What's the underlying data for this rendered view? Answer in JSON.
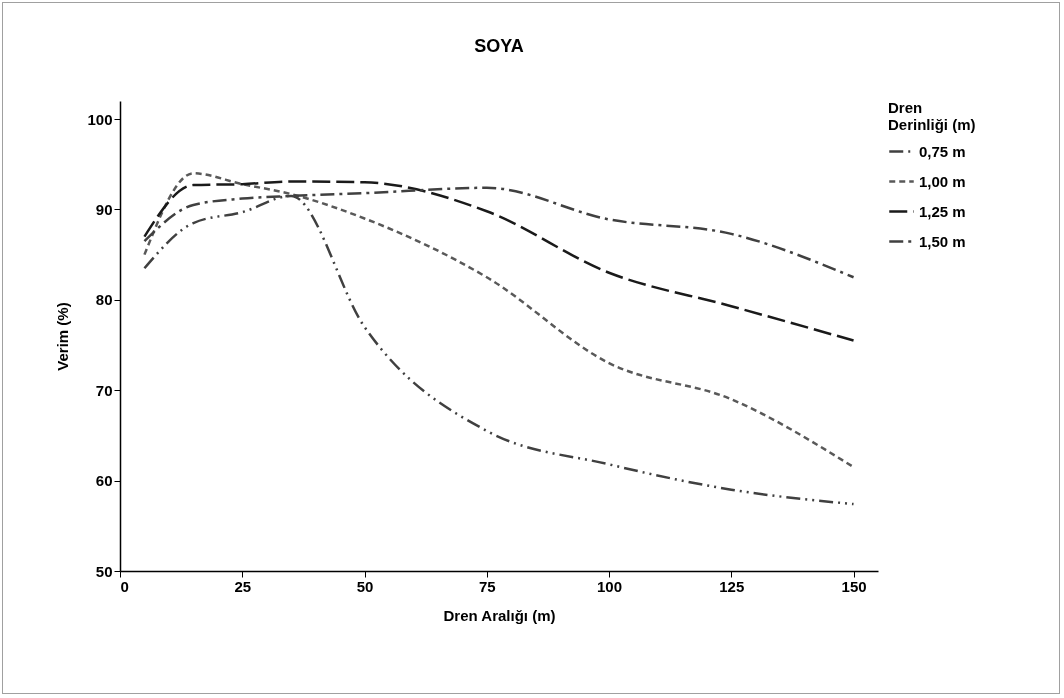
{
  "chart_data": {
    "type": "line",
    "title": "SOYA",
    "xlabel": "Dren Aralığı (m)",
    "ylabel": "Verim (%)",
    "legend_title": "Dren Derinliği (m)",
    "x": [
      5,
      15,
      25,
      35,
      50,
      75,
      100,
      125,
      150
    ],
    "series": [
      {
        "name": "0,75 m",
        "color": "#404040",
        "values": [
          83.5,
          88.5,
          89.7,
          91.5,
          77,
          65.5,
          61.8,
          59,
          57.4
        ]
      },
      {
        "name": "1,00 m",
        "color": "#595959",
        "values": [
          85,
          94,
          92.8,
          91.7,
          89,
          82.5,
          73,
          69,
          61.5
        ]
      },
      {
        "name": "1,25 m",
        "color": "#1a1a1a",
        "values": [
          87,
          92.7,
          92.8,
          93.1,
          93,
          89.8,
          83,
          79.3,
          75.5
        ]
      },
      {
        "name": "1,50 m",
        "color": "#404040",
        "values": [
          86.5,
          90.5,
          91.2,
          91.5,
          91.8,
          92.4,
          88.9,
          87.3,
          82.5
        ]
      }
    ],
    "xlim": [
      0,
      155
    ],
    "xticks": [
      0,
      25,
      50,
      75,
      100,
      125,
      150
    ],
    "ylim": [
      50,
      102
    ],
    "yticks": [
      50,
      60,
      70,
      80,
      90,
      100
    ],
    "grid": false,
    "legend": "right",
    "line_style": "dashed",
    "marker": "none"
  }
}
